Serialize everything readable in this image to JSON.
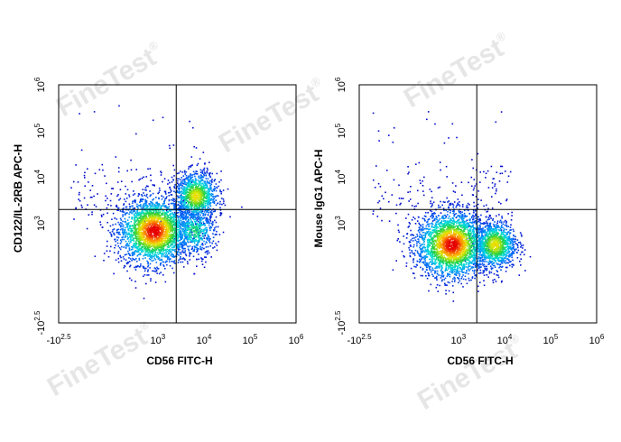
{
  "watermark": {
    "text": "FineTest",
    "mark": "®"
  },
  "chart_data": [
    {
      "type": "scatter",
      "render": "density-dot-plot",
      "xlabel": "CD56 FITC-H",
      "ylabel": "CD122/IL-2RB APC-H",
      "x_scale": "biexponential",
      "y_scale": "biexponential",
      "xlim": [
        "-10^2.5",
        "10^6"
      ],
      "ylim": [
        "-10^2.5",
        "10^6"
      ],
      "x_ticks": [
        {
          "base": "-10",
          "exp": "2.5"
        },
        {
          "base": "10",
          "exp": "3"
        },
        {
          "base": "10",
          "exp": "4"
        },
        {
          "base": "10",
          "exp": "5"
        },
        {
          "base": "10",
          "exp": "6"
        }
      ],
      "y_ticks": [
        {
          "base": "-10",
          "exp": "2.5"
        },
        {
          "base": "10",
          "exp": "3"
        },
        {
          "base": "10",
          "exp": "4"
        },
        {
          "base": "10",
          "exp": "5"
        },
        {
          "base": "10",
          "exp": "6"
        }
      ],
      "quadrant_gate": {
        "x": 2500,
        "y": 2000
      },
      "populations": [
        {
          "center": [
            800,
            700
          ],
          "spread": "large",
          "peak_density": "high"
        },
        {
          "center": [
            6500,
            4000
          ],
          "spread": "medium",
          "peak_density": "medium"
        },
        {
          "center": [
            6000,
            700
          ],
          "spread": "medium",
          "peak_density": "low"
        }
      ],
      "grid": false,
      "legend": "none"
    },
    {
      "type": "scatter",
      "render": "density-dot-plot",
      "xlabel": "CD56 FITC-H",
      "ylabel": "Mouse IgG1 APC-H",
      "x_scale": "biexponential",
      "y_scale": "biexponential",
      "xlim": [
        "-10^2.5",
        "10^6"
      ],
      "ylim": [
        "-10^2.5",
        "10^6"
      ],
      "x_ticks": [
        {
          "base": "-10",
          "exp": "2.5"
        },
        {
          "base": "10",
          "exp": "3"
        },
        {
          "base": "10",
          "exp": "4"
        },
        {
          "base": "10",
          "exp": "5"
        },
        {
          "base": "10",
          "exp": "6"
        }
      ],
      "y_ticks": [
        {
          "base": "-10",
          "exp": "2.5"
        },
        {
          "base": "10",
          "exp": "3"
        },
        {
          "base": "10",
          "exp": "4"
        },
        {
          "base": "10",
          "exp": "5"
        },
        {
          "base": "10",
          "exp": "6"
        }
      ],
      "quadrant_gate": {
        "x": 2500,
        "y": 2000
      },
      "populations": [
        {
          "center": [
            700,
            550
          ],
          "spread": "large",
          "peak_density": "high"
        },
        {
          "center": [
            6000,
            550
          ],
          "spread": "medium",
          "peak_density": "medium"
        }
      ],
      "grid": false,
      "legend": "none"
    }
  ]
}
